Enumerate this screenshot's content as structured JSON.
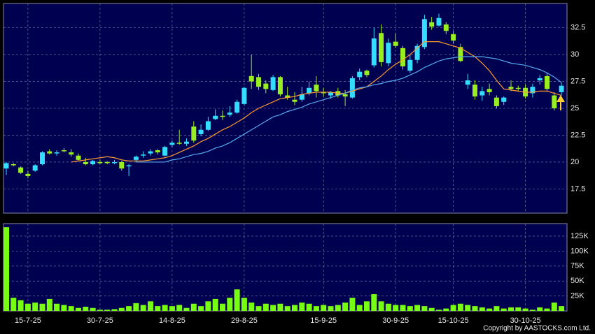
{
  "chart_data": [
    {
      "type": "candlestick",
      "up_color": "#33ddff",
      "down_color": "#99ee22",
      "ylim": [
        15.25,
        34.75
      ],
      "yticks": [
        17.5,
        20,
        22.5,
        25,
        27.5,
        30,
        32.5
      ],
      "grid": true,
      "open": [
        19.4,
        19.8,
        19.5,
        18.9,
        19.2,
        19.8,
        21.0,
        20.8,
        21.1,
        20.9,
        20.6,
        20.0,
        19.8,
        20.0,
        20.0,
        19.9,
        20.0,
        19.6,
        20.2,
        20.6,
        20.8,
        21.1,
        20.6,
        21.6,
        21.8,
        21.7,
        23.3,
        22.6,
        23.0,
        24.0,
        24.3,
        24.4,
        24.6,
        25.4,
        28.0,
        27.9,
        27.3,
        26.7,
        27.9,
        26.2,
        25.8,
        25.8,
        26.4,
        27.2,
        26.5,
        26.2,
        26.6,
        26.3,
        26.0,
        27.9,
        28.5,
        29.0,
        32.0,
        29.2,
        31.2,
        30.6,
        28.5,
        29.5,
        30.7,
        33.0,
        32.7,
        32.8,
        31.9,
        30.7,
        27.2,
        27.2,
        26.2,
        26.8,
        26.0,
        25.6,
        27.0,
        26.9,
        26.9,
        26.4,
        27.6,
        28.0,
        26.2,
        26.5
      ],
      "high": [
        20.0,
        19.9,
        19.6,
        19.2,
        19.8,
        21.0,
        21.2,
        21.1,
        21.3,
        21.2,
        20.8,
        20.4,
        20.2,
        20.2,
        20.1,
        20.2,
        20.1,
        19.8,
        20.6,
        21.0,
        21.2,
        21.2,
        21.5,
        22.0,
        23.0,
        22.2,
        23.8,
        23.5,
        24.2,
        24.9,
        24.8,
        25.2,
        25.8,
        27.0,
        30.0,
        28.2,
        27.6,
        28.1,
        28.0,
        27.0,
        26.5,
        27.0,
        27.5,
        28.0,
        26.9,
        26.6,
        26.9,
        26.7,
        28.0,
        28.7,
        28.6,
        32.5,
        32.8,
        31.5,
        32.0,
        30.8,
        30.0,
        31.0,
        33.7,
        33.5,
        33.8,
        33.0,
        32.2,
        31.0,
        28.2,
        27.6,
        27.0,
        27.3,
        26.2,
        26.1,
        27.6,
        27.1,
        27.2,
        27.3,
        28.1,
        28.3,
        26.5,
        27.4
      ],
      "low": [
        18.8,
        19.6,
        18.9,
        18.5,
        19.1,
        19.7,
        20.7,
        20.6,
        20.9,
        20.5,
        20.1,
        19.7,
        19.7,
        19.8,
        19.8,
        19.8,
        19.2,
        18.7,
        20.0,
        20.4,
        20.6,
        20.7,
        20.5,
        21.4,
        21.6,
        21.5,
        21.8,
        22.4,
        22.9,
        23.9,
        23.9,
        24.2,
        24.5,
        25.3,
        26.8,
        26.7,
        26.4,
        26.6,
        26.1,
        25.8,
        25.3,
        25.6,
        26.2,
        26.0,
        26.1,
        25.9,
        26.0,
        25.2,
        25.9,
        27.6,
        27.9,
        28.8,
        28.9,
        28.9,
        30.6,
        28.6,
        28.3,
        29.2,
        30.5,
        32.3,
        32.6,
        31.9,
        31.0,
        29.3,
        26.8,
        25.8,
        25.7,
        26.2,
        25.0,
        25.3,
        26.6,
        26.6,
        25.9,
        26.0,
        27.2,
        26.6,
        24.8,
        26.2
      ],
      "close": [
        19.9,
        19.7,
        19.0,
        18.7,
        19.7,
        20.9,
        20.8,
        20.9,
        21.0,
        20.7,
        20.2,
        19.8,
        20.1,
        19.9,
        19.9,
        20.0,
        19.4,
        19.7,
        20.5,
        20.7,
        21.0,
        20.9,
        21.4,
        21.8,
        21.7,
        21.9,
        22.0,
        23.0,
        23.8,
        24.3,
        24.2,
        24.6,
        25.6,
        26.9,
        27.5,
        27.0,
        26.8,
        27.9,
        26.3,
        26.0,
        25.6,
        26.3,
        26.9,
        26.6,
        26.4,
        26.5,
        26.2,
        26.1,
        27.8,
        28.4,
        28.1,
        31.5,
        29.3,
        31.1,
        30.8,
        28.9,
        29.5,
        30.8,
        33.3,
        32.6,
        33.4,
        32.2,
        31.3,
        29.4,
        27.6,
        26.1,
        26.6,
        26.5,
        25.2,
        26.0,
        26.8,
        26.8,
        26.1,
        27.0,
        27.8,
        26.8,
        25.0,
        27.1
      ],
      "series": [
        {
          "color": "#ff9933",
          "values": [
            null,
            null,
            null,
            null,
            null,
            null,
            null,
            null,
            null,
            20.0,
            20.1,
            20.2,
            20.3,
            20.4,
            20.5,
            20.4,
            20.2,
            20.1,
            20.1,
            20.1,
            20.2,
            20.3,
            20.4,
            20.6,
            20.9,
            21.2,
            21.5,
            21.9,
            22.2,
            22.6,
            23.0,
            23.3,
            23.7,
            24.1,
            24.6,
            25.0,
            25.3,
            25.6,
            25.9,
            26.0,
            26.1,
            26.3,
            26.4,
            26.5,
            26.5,
            26.5,
            26.4,
            26.4,
            26.6,
            26.8,
            27.0,
            27.5,
            28.0,
            28.6,
            29.1,
            29.5,
            30.0,
            30.6,
            31.2,
            31.2,
            31.2,
            31.0,
            30.8,
            30.6,
            30.2,
            29.8,
            29.2,
            28.5,
            27.6,
            26.8,
            26.7,
            26.6,
            26.5,
            26.5,
            26.6,
            26.6,
            26.4,
            26.2
          ]
        },
        {
          "color": "#55aaee",
          "values": [
            null,
            null,
            null,
            null,
            null,
            null,
            null,
            null,
            null,
            null,
            null,
            null,
            null,
            null,
            null,
            null,
            null,
            null,
            20.0,
            20.0,
            20.0,
            20.0,
            20.0,
            20.2,
            20.3,
            20.5,
            20.7,
            20.8,
            21.0,
            21.3,
            21.5,
            21.8,
            22.2,
            22.6,
            23.0,
            23.4,
            23.8,
            24.2,
            24.4,
            24.7,
            24.9,
            25.1,
            25.4,
            25.6,
            25.8,
            26.0,
            26.2,
            26.4,
            26.7,
            26.9,
            27.0,
            27.2,
            27.3,
            27.5,
            27.6,
            27.8,
            28.1,
            28.4,
            28.8,
            29.1,
            29.4,
            29.6,
            29.7,
            29.8,
            29.8,
            29.8,
            29.8,
            29.7,
            29.6,
            29.4,
            29.2,
            29.1,
            29.0,
            28.8,
            28.6,
            28.3,
            27.9,
            27.4
          ]
        }
      ]
    },
    {
      "type": "bar",
      "color": "#77ff11",
      "categories": [
        null,
        null,
        null,
        "15-7-25",
        null,
        null,
        null,
        null,
        null,
        null,
        null,
        null,
        null,
        "30-7-25",
        null,
        null,
        null,
        null,
        null,
        null,
        null,
        null,
        null,
        "14-8-25",
        null,
        null,
        null,
        null,
        null,
        null,
        null,
        null,
        null,
        "29-8-25",
        null,
        null,
        null,
        null,
        null,
        null,
        null,
        null,
        null,
        null,
        "15-9-25",
        null,
        null,
        null,
        null,
        null,
        null,
        null,
        null,
        null,
        "30-9-25",
        null,
        null,
        null,
        null,
        null,
        null,
        null,
        "15-10-25",
        null,
        null,
        null,
        null,
        null,
        null,
        null,
        null,
        null,
        "30-10-25",
        null,
        null,
        null,
        null,
        null
      ],
      "values": [
        140000,
        22000,
        18000,
        12000,
        14000,
        12000,
        20000,
        12000,
        10000,
        8000,
        5000,
        7000,
        5000,
        2000,
        2000,
        3000,
        5000,
        8000,
        13000,
        10000,
        16000,
        8000,
        10000,
        8000,
        10000,
        5000,
        12000,
        8000,
        16000,
        20000,
        12000,
        22000,
        36000,
        22000,
        14000,
        8000,
        12000,
        10000,
        12000,
        8000,
        10000,
        14000,
        12000,
        8000,
        10000,
        8000,
        10000,
        14000,
        22000,
        10000,
        16000,
        28000,
        16000,
        12000,
        10000,
        10000,
        8000,
        10000,
        8000,
        5000,
        2000,
        4000,
        10000,
        12000,
        10000,
        8000,
        6000,
        4000,
        8000,
        4000,
        6000,
        6000,
        4000,
        2000,
        6000,
        4000,
        14000,
        8000
      ],
      "ylim": [
        0,
        146000
      ],
      "yticks": [
        {
          "value": 25000,
          "label": "25K"
        },
        {
          "value": 50000,
          "label": "50K"
        },
        {
          "value": 75000,
          "label": "75K"
        },
        {
          "value": 100000,
          "label": "100K"
        },
        {
          "value": 125000,
          "label": "125K"
        }
      ],
      "grid": true,
      "annotation": "Copyright by AASTOCKS.com Ltd."
    }
  ]
}
